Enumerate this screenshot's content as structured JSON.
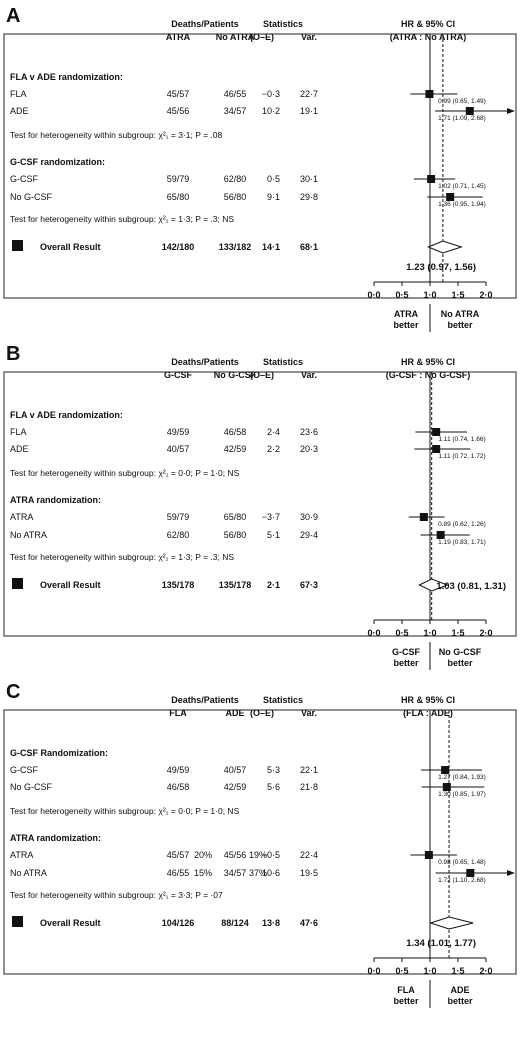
{
  "panels": [
    {
      "letter": "A",
      "head": {
        "deaths_patients": "Deaths/Patients",
        "statistics": "Statistics",
        "hr_title": "HR & 95% CI",
        "col1": "ATRA",
        "col2": "No ATRA",
        "oe": "(O–E)",
        "var": "Var.",
        "hr_sub": "(ATRA : No ATRA)"
      },
      "groups": [
        {
          "title": "FLA v ADE randomization:",
          "rows": [
            {
              "label": "FLA",
              "c1": "45/57",
              "c2": "46/55",
              "oe": "−0·3",
              "var": "22·7",
              "ci_text": "0.99 (0.65, 1.49)",
              "hr": 0.99,
              "lo": 0.65,
              "hi": 1.49,
              "arrow": false
            },
            {
              "label": "ADE",
              "c1": "45/56",
              "c2": "34/57",
              "oe": "10·2",
              "var": "19·1",
              "ci_text": "1.71 (1.09, 2.68)",
              "hr": 1.71,
              "lo": 1.09,
              "hi": 2.68,
              "arrow": true
            }
          ],
          "het": "Test for heterogeneity within subgroup: χ²₁ = 3·1; P = .08"
        },
        {
          "title": "G-CSF randomization:",
          "rows": [
            {
              "label": "G-CSF",
              "c1": "59/79",
              "c2": "62/80",
              "oe": "0·5",
              "var": "30·1",
              "ci_text": "1.02 (0.71, 1.45)",
              "hr": 1.02,
              "lo": 0.71,
              "hi": 1.45,
              "arrow": false
            },
            {
              "label": "No G-CSF",
              "c1": "65/80",
              "c2": "56/80",
              "oe": "9·1",
              "var": "29·8",
              "ci_text": "1.36 (0.95, 1.94)",
              "hr": 1.36,
              "lo": 0.95,
              "hi": 1.94,
              "arrow": false
            }
          ],
          "het": "Test for heterogeneity within subgroup: χ²₁ = 1·3; P = .3; NS"
        }
      ],
      "overall": {
        "label": "Overall Result",
        "c1": "142/180",
        "c2": "133/182",
        "oe": "14·1",
        "var": "68·1",
        "hr": 1.23,
        "lo": 0.97,
        "hi": 1.56,
        "ci_text": "1.23 (0.97, 1.56)"
      },
      "ticks": [
        "0·0",
        "0·5",
        "1·0",
        "1·5",
        "2·0"
      ],
      "better_left": [
        "ATRA",
        "better"
      ],
      "better_right": [
        "No ATRA",
        "better"
      ]
    },
    {
      "letter": "B",
      "head": {
        "deaths_patients": "Deaths/Patients",
        "statistics": "Statistics",
        "hr_title": "HR & 95% CI",
        "col1": "G-CSF",
        "col2": "No G-CSF",
        "oe": "(O–E)",
        "var": "Var.",
        "hr_sub": "(G-CSF : No G-CSF)"
      },
      "groups": [
        {
          "title": "FLA v ADE randomization:",
          "rows": [
            {
              "label": "FLA",
              "c1": "49/59",
              "c2": "46/58",
              "oe": "2·4",
              "var": "23·6",
              "ci_text": "1.11 (0.74, 1.66)",
              "hr": 1.11,
              "lo": 0.74,
              "hi": 1.66,
              "arrow": false
            },
            {
              "label": "ADE",
              "c1": "40/57",
              "c2": "42/59",
              "oe": "2·2",
              "var": "20·3",
              "ci_text": "1.11 (0.72, 1.72)",
              "hr": 1.11,
              "lo": 0.72,
              "hi": 1.72,
              "arrow": false
            }
          ],
          "het": "Test for heterogeneity within subgroup: χ²₁ = 0·0; P = 1·0; NS"
        },
        {
          "title": "ATRA randomization:",
          "rows": [
            {
              "label": "ATRA",
              "c1": "59/79",
              "c2": "65/80",
              "oe": "−3·7",
              "var": "30·9",
              "ci_text": "0.89 (0.62, 1.26)",
              "hr": 0.89,
              "lo": 0.62,
              "hi": 1.26,
              "arrow": false
            },
            {
              "label": "No ATRA",
              "c1": "62/80",
              "c2": "56/80",
              "oe": "5·1",
              "var": "29·4",
              "ci_text": "1.19 (0.83, 1.71)",
              "hr": 1.19,
              "lo": 0.83,
              "hi": 1.71,
              "arrow": false
            }
          ],
          "het": "Test for heterogeneity within subgroup: χ²₁ = 1·3; P = .3; NS"
        }
      ],
      "overall": {
        "label": "Overall Result",
        "c1": "135/178",
        "c2": "135/178",
        "oe": "2·1",
        "var": "67·3",
        "hr": 1.03,
        "lo": 0.81,
        "hi": 1.31,
        "ci_text": "1.03 (0.81, 1.31)"
      },
      "ticks": [
        "0·0",
        "0·5",
        "1·0",
        "1·5",
        "2·0"
      ],
      "better_left": [
        "G-CSF",
        "better"
      ],
      "better_right": [
        "No G-CSF",
        "better"
      ]
    },
    {
      "letter": "C",
      "head": {
        "deaths_patients": "Deaths/Patients",
        "statistics": "Statistics",
        "hr_title": "HR & 95% CI",
        "col1": "FLA",
        "col2": "ADE",
        "oe": "(O–E)",
        "var": "Var.",
        "hr_sub": "(FLA : ADE)"
      },
      "groups": [
        {
          "title": "G-CSF Randomization:",
          "rows": [
            {
              "label": "G-CSF",
              "c1": "49/59",
              "c2": "40/57",
              "oe": "5·3",
              "var": "22·1",
              "ci_text": "1.27 (0.84, 1.93)",
              "hr": 1.27,
              "lo": 0.84,
              "hi": 1.93,
              "arrow": false
            },
            {
              "label": "No G-CSF",
              "c1": "46/58",
              "c2": "42/59",
              "oe": "5·6",
              "var": "21·8",
              "ci_text": "1.30 (0.85, 1.97)",
              "hr": 1.3,
              "lo": 0.85,
              "hi": 1.97,
              "arrow": false
            }
          ],
          "het": "Test for heterogeneity within subgroup: χ²₁ = 0·0; P = 1·0; NS"
        },
        {
          "title": "ATRA randomization:",
          "rows": [
            {
              "label": "ATRA",
              "c1": "45/57",
              "c1p": "20%",
              "c2": "45/56",
              "c2p": "19%",
              "oe": "−0·5",
              "var": "22·4",
              "ci_text": "0.98 (0.65, 1.48)",
              "hr": 0.98,
              "lo": 0.65,
              "hi": 1.48,
              "arrow": false
            },
            {
              "label": "No ATRA",
              "c1": "46/55",
              "c1p": "15%",
              "c2": "34/57",
              "c2p": "37%",
              "oe": "10·6",
              "var": "19·5",
              "ci_text": "1.72 (1.10, 2.68)",
              "hr": 1.72,
              "lo": 1.1,
              "hi": 2.68,
              "arrow": true
            }
          ],
          "het": "Test for heterogeneity within subgroup: χ²₁ = 3·3; P = ·07"
        }
      ],
      "overall": {
        "label": "Overall Result",
        "c1": "104/126",
        "c2": "88/124",
        "oe": "13·8",
        "var": "47·6",
        "hr": 1.34,
        "lo": 1.01,
        "hi": 1.77,
        "ci_text": "1.34 (1.01, 1.77)"
      },
      "ticks": [
        "0·0",
        "0·5",
        "1·0",
        "1·5",
        "2·0"
      ],
      "better_left": [
        "FLA",
        "better"
      ],
      "better_right": [
        "ADE",
        "better"
      ]
    }
  ],
  "chart_data": [
    {
      "type": "forest",
      "panel": "A",
      "xlim": [
        0,
        2
      ],
      "categories": [
        "FLA",
        "ADE",
        "G-CSF",
        "No G-CSF",
        "Overall Result"
      ],
      "hr": [
        0.99,
        1.71,
        1.02,
        1.36,
        1.23
      ],
      "ci_low": [
        0.65,
        1.09,
        0.71,
        0.95,
        0.97
      ],
      "ci_high": [
        1.49,
        2.68,
        1.45,
        1.94,
        1.56
      ]
    },
    {
      "type": "forest",
      "panel": "B",
      "xlim": [
        0,
        2
      ],
      "categories": [
        "FLA",
        "ADE",
        "ATRA",
        "No ATRA",
        "Overall Result"
      ],
      "hr": [
        1.11,
        1.11,
        0.89,
        1.19,
        1.03
      ],
      "ci_low": [
        0.74,
        0.72,
        0.62,
        0.83,
        0.81
      ],
      "ci_high": [
        1.66,
        1.72,
        1.26,
        1.71,
        1.31
      ]
    },
    {
      "type": "forest",
      "panel": "C",
      "xlim": [
        0,
        2
      ],
      "categories": [
        "G-CSF",
        "No G-CSF",
        "ATRA",
        "No ATRA",
        "Overall Result"
      ],
      "hr": [
        1.27,
        1.3,
        0.98,
        1.72,
        1.34
      ],
      "ci_low": [
        0.84,
        0.85,
        0.65,
        1.1,
        1.01
      ],
      "ci_high": [
        1.93,
        1.97,
        1.48,
        2.68,
        1.77
      ]
    }
  ]
}
